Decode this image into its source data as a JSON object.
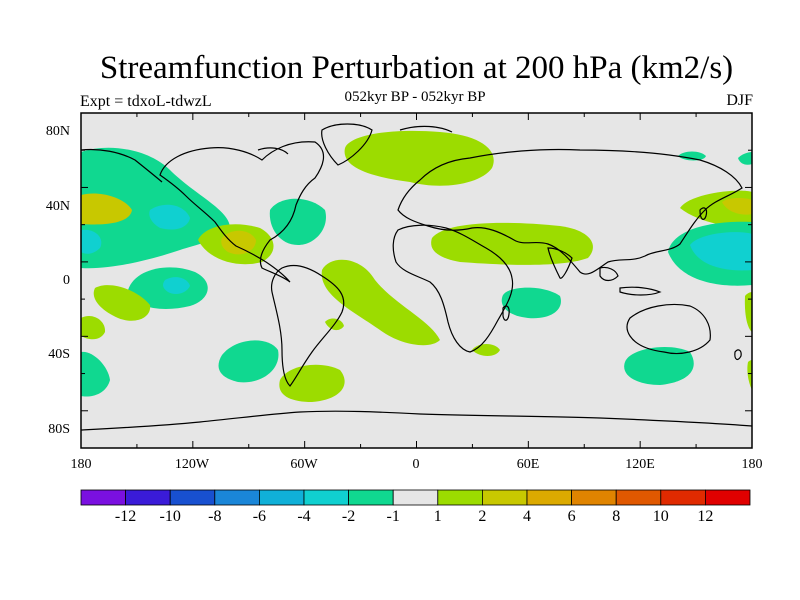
{
  "title": "Streamfunction Perturbation at 200 hPa (km2/s)",
  "subtitle": "052kyr BP - 052kyr BP",
  "left_label": "Expt = tdxoL-tdwzL",
  "right_label": "DJF",
  "lat_labels": [
    "80N",
    "40N",
    "0",
    "40S",
    "80S"
  ],
  "lon_labels": [
    "180",
    "120W",
    "60W",
    "0",
    "60E",
    "120E",
    "180"
  ],
  "colorbar": {
    "colors": [
      "#7a10e0",
      "#3a1bd8",
      "#1850d0",
      "#1a86d8",
      "#10b0d8",
      "#10d0d0",
      "#10d890",
      "#e6e6e6",
      "#9cdc00",
      "#c8c800",
      "#dcaa00",
      "#e08400",
      "#e05800",
      "#e02a00",
      "#e00000"
    ],
    "labels": [
      "-12",
      "-10",
      "-8",
      "-6",
      "-4",
      "-2",
      "-1",
      "1",
      "2",
      "4",
      "6",
      "8",
      "10",
      "12"
    ]
  },
  "map_colors": {
    "background": "#e6e6e6",
    "pos1": "#9cdc00",
    "pos2": "#c8c800",
    "pos3": "#dcaa00",
    "neg1": "#10d890",
    "neg2": "#10d0d0"
  }
}
